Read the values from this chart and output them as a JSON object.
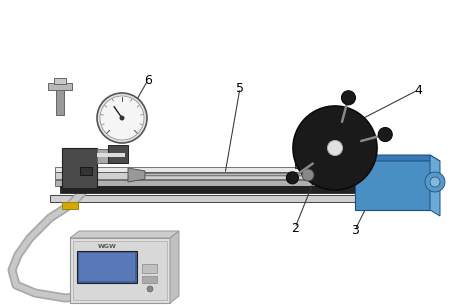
{
  "bg_color": "#ffffff",
  "blue_motor": "#4a8fc4",
  "blue_motor_side": "#6aaad8",
  "blue_motor_top": "#3a7ab4",
  "black_disk": "#1e1e1e",
  "dark_gray": "#444444",
  "mid_gray": "#777777",
  "light_gray": "#c8c8c8",
  "rail_silver": "#d0d0d0",
  "rail_dark": "#555555",
  "rail_bright": "#e8e8e8",
  "yellow": "#d4a800",
  "handle_gray": "#b0b0b0",
  "box_gray": "#d0d0d0",
  "screen_blue": "#5878b8",
  "gauge_white": "#f5f5f5",
  "shaft_bar": "#333333",
  "label_font": 9,
  "border_color": "#555555"
}
